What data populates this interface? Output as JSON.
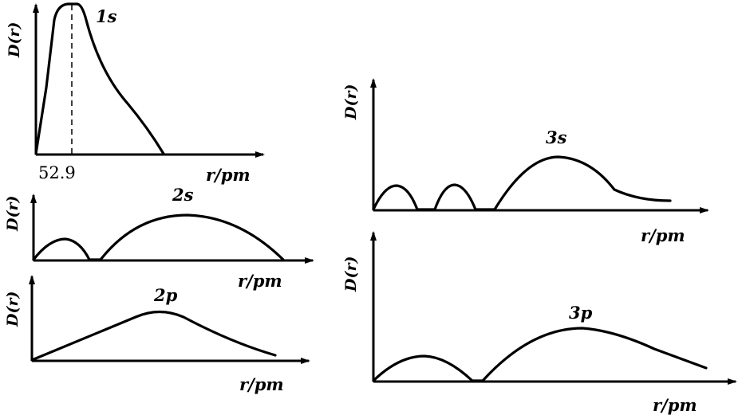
{
  "panels": [
    {
      "orbital": "1s",
      "ylabel": "D(r)",
      "xlabel": "r/pm",
      "marker_value": "52.9"
    },
    {
      "orbital": "2s",
      "ylabel": "D(r)",
      "xlabel": "r/pm"
    },
    {
      "orbital": "2p",
      "ylabel": "D(r)",
      "xlabel": "r/pm"
    },
    {
      "orbital": "3s",
      "ylabel": "D(r)",
      "xlabel": "r/pm"
    },
    {
      "orbital": "3p",
      "ylabel": "D(r)",
      "xlabel": "r/pm"
    }
  ]
}
